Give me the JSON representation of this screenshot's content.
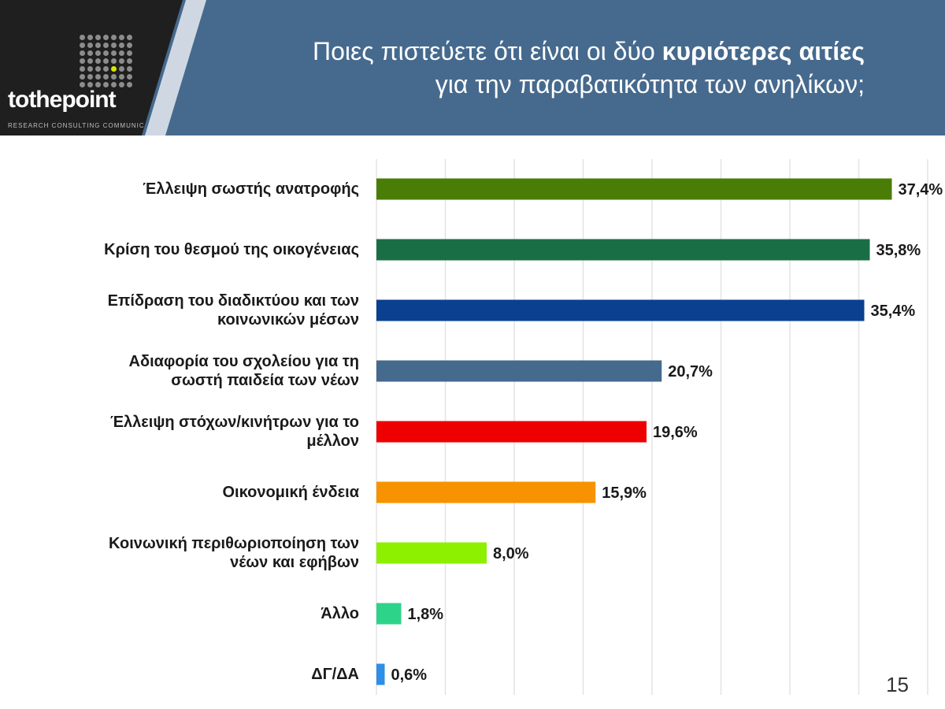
{
  "header": {
    "title_line1_normal": "Ποιες πιστεύετε ότι είναι οι δύο ",
    "title_line1_bold": "κυριότερες αιτίες",
    "title_line2": "για την παραβατικότητα των ανηλίκων;"
  },
  "logo": {
    "text": "tothepoint",
    "tagline": "RESEARCH CONSULTING COMMUNICATION"
  },
  "page_number": "15",
  "colors": {
    "header_bg": "#466a8e",
    "grid": "#e3e3e3"
  },
  "chart_data": {
    "type": "bar",
    "orientation": "horizontal",
    "title": "Ποιες πιστεύετε ότι είναι οι δύο κυριότερες αιτίες για την παραβατικότητα των ανηλίκων;",
    "categories": [
      "Έλλειψη σωστής ανατροφής",
      "Κρίση του θεσμού της οικογένειας",
      "Επίδραση του διαδικτύου και των κοινωνικών μέσων",
      "Αδιαφορία του σχολείου για τη σωστή παιδεία των νέων",
      "Έλλειψη στόχων/κινήτρων για το μέλλον",
      "Οικονομική ένδεια",
      "Κοινωνική περιθωριοποίηση των νέων και εφήβων",
      "Άλλο",
      "ΔΓ/ΔΑ"
    ],
    "label_lines": [
      [
        "Έλλειψη σωστής ανατροφής"
      ],
      [
        "Κρίση του θεσμού της οικογένειας"
      ],
      [
        "Επίδραση του διαδικτύου και των",
        "κοινωνικών μέσων"
      ],
      [
        "Αδιαφορία του σχολείου για τη",
        "σωστή παιδεία των νέων"
      ],
      [
        "Έλλειψη στόχων/κινήτρων για το",
        "μέλλον"
      ],
      [
        "Οικονομική ένδεια"
      ],
      [
        "Κοινωνική περιθωριοποίηση των",
        "νέων και εφήβων"
      ],
      [
        "Άλλο"
      ],
      [
        "ΔΓ/ΔΑ"
      ]
    ],
    "values": [
      37.4,
      35.8,
      35.4,
      20.7,
      19.6,
      15.9,
      8.0,
      1.8,
      0.6
    ],
    "value_labels": [
      "37,4%",
      "35,8%",
      "35,4%",
      "20,7%",
      "19,6%",
      "15,9%",
      "8,0%",
      "1,8%",
      "0,6%"
    ],
    "bar_colors": [
      "#4a7d07",
      "#1a6e45",
      "#0b3f8f",
      "#466a8e",
      "#ee0000",
      "#f79200",
      "#8cf000",
      "#2ed38a",
      "#2f8ee5"
    ],
    "xlim": [
      0,
      40
    ],
    "grid": true,
    "xlabel": "",
    "ylabel": ""
  }
}
